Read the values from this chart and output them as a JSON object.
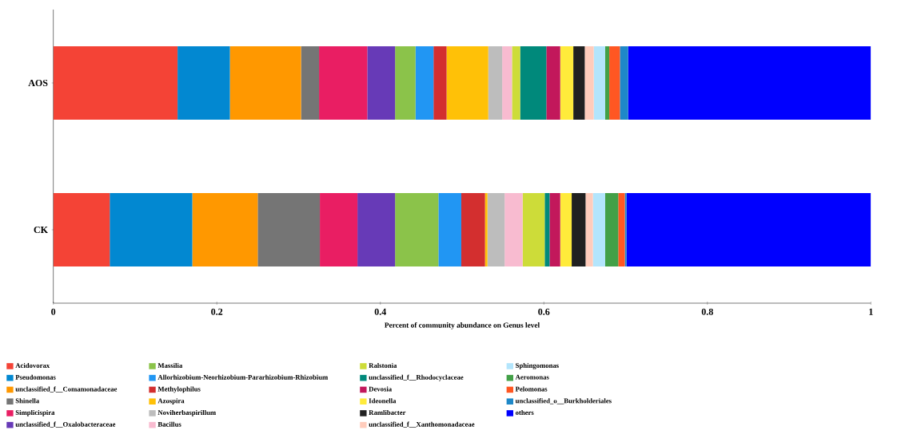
{
  "chart_data": {
    "type": "bar",
    "orientation": "horizontal",
    "stacked": true,
    "categories": [
      "AOS",
      "CK"
    ],
    "xlabel": "Percent of community abundance on Genus level",
    "xlim": [
      0,
      1
    ],
    "xticks": [
      0,
      0.2,
      0.4,
      0.6,
      0.8,
      1
    ],
    "legend": "bottom",
    "series": [
      {
        "name": "Acidovorax",
        "color": "#f44336",
        "values": [
          0.152,
          0.069
        ]
      },
      {
        "name": "Pseudomonas",
        "color": "#0288d1",
        "values": [
          0.064,
          0.101
        ]
      },
      {
        "name": "unclassified_f__Comamonadaceae",
        "color": "#ff9800",
        "values": [
          0.087,
          0.08
        ]
      },
      {
        "name": "Shinella",
        "color": "#757575",
        "values": [
          0.022,
          0.076
        ]
      },
      {
        "name": "Simplicispira",
        "color": "#e91e63",
        "values": [
          0.059,
          0.046
        ]
      },
      {
        "name": "unclassified_f__Oxalobacteraceae",
        "color": "#673ab7",
        "values": [
          0.034,
          0.046
        ]
      },
      {
        "name": "Massilia",
        "color": "#8bc34a",
        "values": [
          0.025,
          0.053
        ]
      },
      {
        "name": "Allorhizobium-Neorhizobium-Pararhizobium-Rhizobium",
        "color": "#2196f3",
        "values": [
          0.022,
          0.028
        ]
      },
      {
        "name": "Methylophilus",
        "color": "#d32f2f",
        "values": [
          0.016,
          0.029
        ]
      },
      {
        "name": "Azospira",
        "color": "#ffc107",
        "values": [
          0.051,
          0.003
        ]
      },
      {
        "name": "Noviherbaspirillum",
        "color": "#bdbdbd",
        "values": [
          0.017,
          0.021
        ]
      },
      {
        "name": "Bacillus",
        "color": "#f8bbd0",
        "values": [
          0.012,
          0.022
        ]
      },
      {
        "name": "Ralstonia",
        "color": "#cddc39",
        "values": [
          0.01,
          0.027
        ]
      },
      {
        "name": "unclassified_f__Rhodocyclaceae",
        "color": "#00897b",
        "values": [
          0.032,
          0.006
        ]
      },
      {
        "name": "Devosia",
        "color": "#c2185b",
        "values": [
          0.017,
          0.013
        ]
      },
      {
        "name": "Ideonella",
        "color": "#ffeb3b",
        "values": [
          0.016,
          0.014
        ]
      },
      {
        "name": "Ramlibacter",
        "color": "#212121",
        "values": [
          0.014,
          0.017
        ]
      },
      {
        "name": "unclassified_f__Xanthomonadaceae",
        "color": "#ffccbc",
        "values": [
          0.011,
          0.009
        ]
      },
      {
        "name": "Sphingomonas",
        "color": "#b3e5fc",
        "values": [
          0.014,
          0.015
        ]
      },
      {
        "name": "Aeromonas",
        "color": "#43a047",
        "values": [
          0.005,
          0.016
        ]
      },
      {
        "name": "Pelomonas",
        "color": "#ff5722",
        "values": [
          0.013,
          0.008
        ]
      },
      {
        "name": "unclassified_o__Burkholderiales",
        "color": "#1e88c8",
        "values": [
          0.01,
          0.002
        ]
      },
      {
        "name": "others",
        "color": "#0000ff",
        "values": [
          0.297,
          0.299
        ]
      }
    ]
  }
}
